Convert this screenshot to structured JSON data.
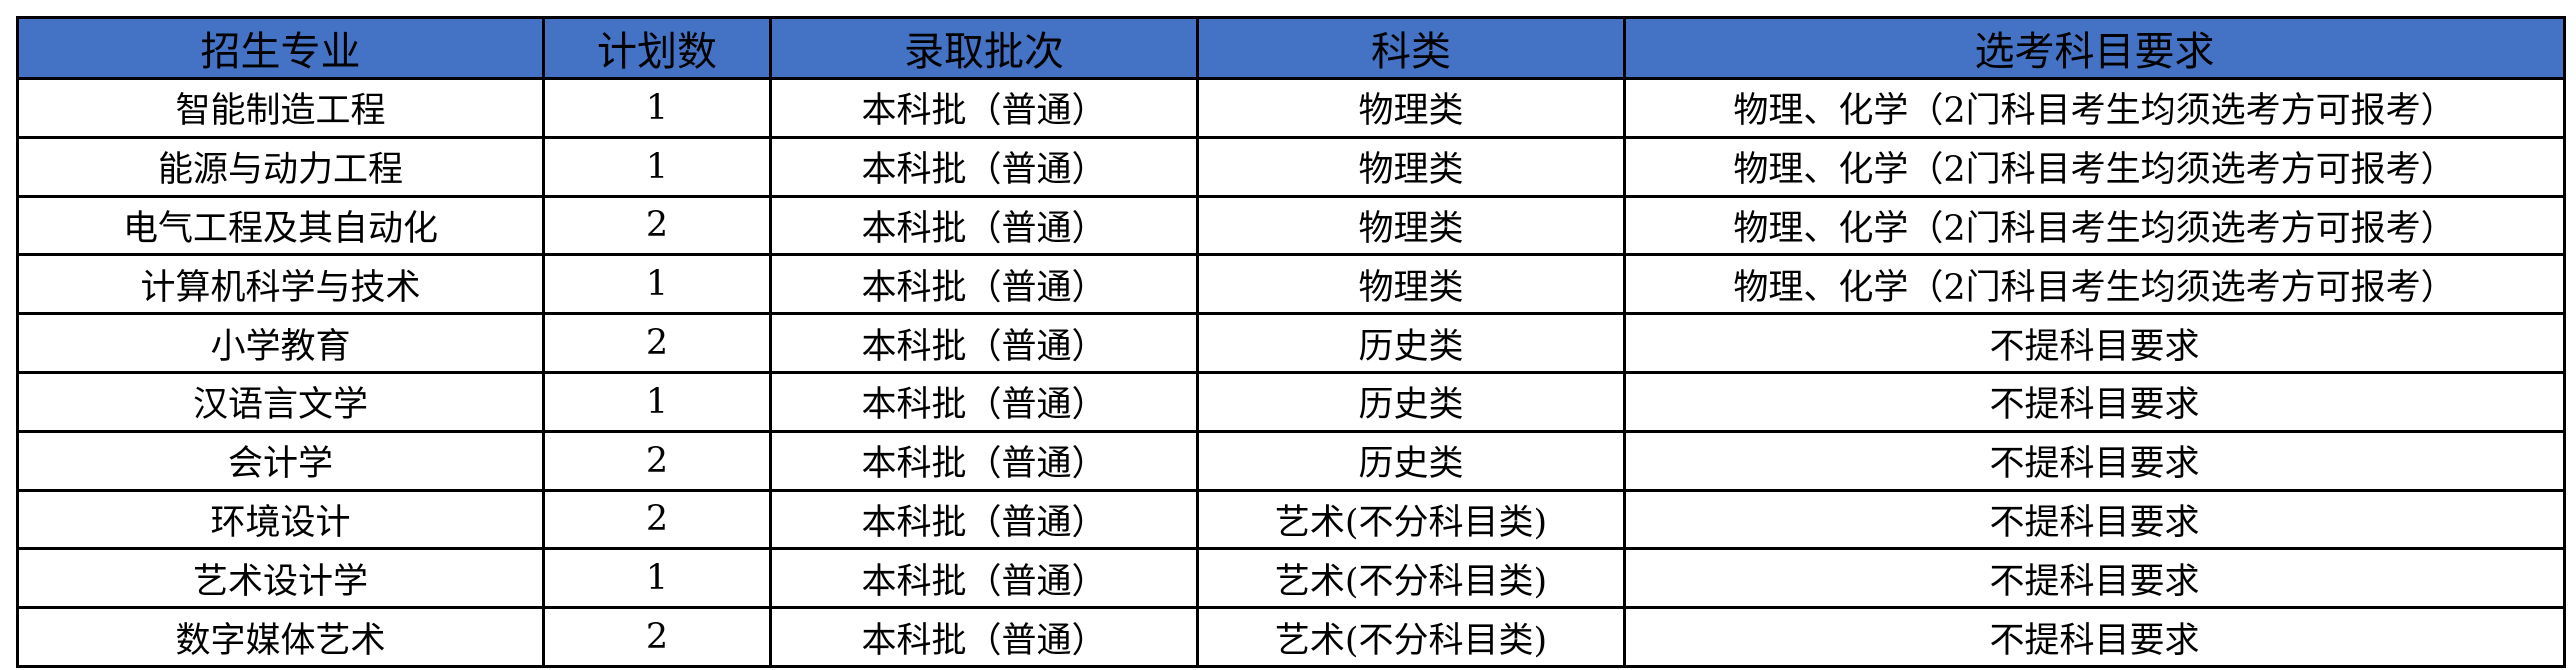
{
  "headers": [
    "招生专业",
    "计划数",
    "录取批次",
    "科类",
    "选考科目要求"
  ],
  "rows": [
    [
      "智能制造工程",
      "1",
      "本科批（普通）",
      "物理类",
      "物理、化学（2门科目考生均须选考方可报考）"
    ],
    [
      "能源与动力工程",
      "1",
      "本科批（普通）",
      "物理类",
      "物理、化学（2门科目考生均须选考方可报考）"
    ],
    [
      "电气工程及其自动化",
      "2",
      "本科批（普通）",
      "物理类",
      "物理、化学（2门科目考生均须选考方可报考）"
    ],
    [
      "计算机科学与技术",
      "1",
      "本科批（普通）",
      "物理类",
      "物理、化学（2门科目考生均须选考方可报考）"
    ],
    [
      "小学教育",
      "2",
      "本科批（普通）",
      "历史类",
      "不提科目要求"
    ],
    [
      "汉语言文学",
      "1",
      "本科批（普通）",
      "历史类",
      "不提科目要求"
    ],
    [
      "会计学",
      "2",
      "本科批（普通）",
      "历史类",
      "不提科目要求"
    ],
    [
      "环境设计",
      "2",
      "本科批（普通）",
      "艺术(不分科目类)",
      "不提科目要求"
    ],
    [
      "艺术设计学",
      "1",
      "本科批（普通）",
      "艺术(不分科目类)",
      "不提科目要求"
    ],
    [
      "数字媒体艺术",
      "2",
      "本科批（普通）",
      "艺术(不分科目类)",
      "不提科目要求"
    ]
  ],
  "colors": {
    "header_bg": "#4472C4",
    "border": "#000000"
  }
}
